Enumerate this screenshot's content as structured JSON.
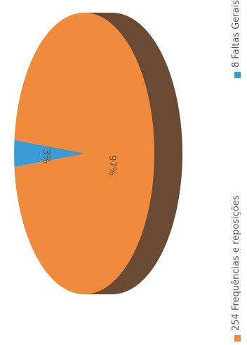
{
  "chart_data": {
    "type": "pie",
    "three_d": true,
    "orientation": "rotated-90-clockwise",
    "title": "",
    "slices": [
      {
        "label": "254 Frequências e reposições",
        "value": 254,
        "percent_label": "97%",
        "color": "#f08a3c",
        "side_color": "#6b4a33"
      },
      {
        "label": "8 Faltas Gerais",
        "value": 8,
        "percent_label": "3%",
        "color": "#3a9bd5",
        "side_color": "#2a6f99"
      }
    ],
    "legend": {
      "placement": "right",
      "items": [
        "254 Frequências e reposições",
        "8 Faltas Gerais"
      ]
    }
  }
}
